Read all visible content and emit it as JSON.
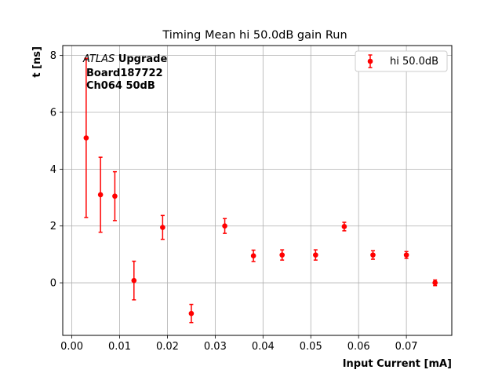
{
  "chart_data": {
    "type": "scatter",
    "title": "Timing Mean hi 50.0dB gain Run",
    "xlabel": "Input Current [mA]",
    "ylabel": "t [ns]",
    "xlim": [
      -0.0019,
      0.0795
    ],
    "ylim": [
      -1.85,
      8.35
    ],
    "xticks": [
      0.0,
      0.01,
      0.02,
      0.03,
      0.04,
      0.05,
      0.06,
      0.07
    ],
    "xtick_labels": [
      "0.00",
      "0.01",
      "0.02",
      "0.03",
      "0.04",
      "0.05",
      "0.06",
      "0.07"
    ],
    "yticks": [
      0,
      2,
      4,
      6,
      8
    ],
    "ytick_labels": [
      "0",
      "2",
      "4",
      "6",
      "8"
    ],
    "grid": true,
    "legend": {
      "position": "top-right"
    },
    "annotation": {
      "line1_italic": "ATLAS",
      "line1_bold": " Upgrade",
      "line2": "Board187722",
      "line3": "Ch064 50dB"
    },
    "series": [
      {
        "name": "hi 50.0dB",
        "color": "#ff0000",
        "x": [
          0.003,
          0.006,
          0.009,
          0.013,
          0.019,
          0.025,
          0.032,
          0.038,
          0.044,
          0.051,
          0.057,
          0.063,
          0.07,
          0.076
        ],
        "y": [
          5.1,
          3.1,
          3.05,
          0.08,
          1.95,
          -1.08,
          2.0,
          0.95,
          0.98,
          0.98,
          1.98,
          0.98,
          0.98,
          0.0
        ],
        "yerr": [
          2.8,
          1.32,
          0.86,
          0.68,
          0.42,
          0.32,
          0.26,
          0.2,
          0.18,
          0.18,
          0.15,
          0.15,
          0.12,
          0.1
        ]
      }
    ]
  }
}
